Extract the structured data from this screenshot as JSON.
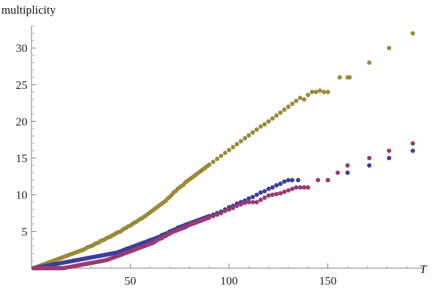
{
  "chart_data": {
    "type": "scatter",
    "title": "",
    "xlabel": "T",
    "ylabel": "multiplicity",
    "xlim": [
      0,
      198
    ],
    "ylim": [
      0,
      33
    ],
    "xticks": [
      50,
      100,
      150
    ],
    "yticks": [
      5,
      10,
      15,
      20,
      25,
      30
    ],
    "grid": false,
    "legend": "none",
    "series": [
      {
        "color": "#9a8a38",
        "x": [
          1,
          2,
          3,
          4,
          5,
          6,
          7,
          8,
          9,
          10,
          11,
          12,
          13,
          14,
          15,
          16,
          17,
          18,
          19,
          20,
          21,
          22,
          23,
          24,
          25,
          26,
          27,
          28,
          29,
          30,
          31,
          32,
          33,
          34,
          35,
          36,
          37,
          38,
          39,
          40,
          41,
          42,
          43,
          44,
          45,
          46,
          47,
          48,
          49,
          50,
          51,
          52,
          53,
          54,
          55,
          56,
          57,
          58,
          59,
          60,
          61,
          62,
          63,
          64,
          65,
          66,
          67,
          68,
          69,
          70,
          71,
          72,
          73,
          74,
          75,
          76,
          77,
          78,
          79,
          80,
          81,
          82,
          83,
          84,
          85,
          86,
          87,
          88,
          89,
          90,
          92,
          94,
          96,
          98,
          100,
          102,
          104,
          106,
          108,
          110,
          112,
          114,
          116,
          118,
          120,
          122,
          124,
          126,
          128,
          130,
          132,
          134,
          136,
          138,
          140,
          142,
          144,
          146,
          148,
          150,
          156,
          160,
          161,
          171,
          181,
          193
        ],
        "y": [
          0,
          0.1,
          0.2,
          0.3,
          0.4,
          0.5,
          0.6,
          0.7,
          0.8,
          0.9,
          1,
          1.1,
          1.2,
          1.3,
          1.4,
          1.5,
          1.6,
          1.7,
          1.8,
          1.9,
          2,
          2.1,
          2.2,
          2.3,
          2.4,
          2.5,
          2.6,
          2.8,
          2.9,
          3,
          3.1,
          3.3,
          3.4,
          3.5,
          3.7,
          3.8,
          3.9,
          4.1,
          4.2,
          4.3,
          4.5,
          4.6,
          4.8,
          4.9,
          5,
          5.2,
          5.4,
          5.5,
          5.7,
          5.8,
          6,
          6.2,
          6.3,
          6.5,
          6.7,
          6.8,
          7,
          7.2,
          7.4,
          7.6,
          7.8,
          8,
          8.2,
          8.4,
          8.6,
          8.8,
          9,
          9.2,
          9.5,
          9.7,
          10,
          10.3,
          10.5,
          10.8,
          11,
          11.2,
          11.4,
          11.7,
          11.9,
          12.1,
          12.3,
          12.5,
          12.7,
          12.9,
          13.1,
          13.3,
          13.5,
          13.7,
          13.9,
          14.1,
          14.5,
          14.9,
          15.3,
          15.7,
          16.1,
          16.5,
          16.9,
          17.3,
          17.7,
          18.1,
          18.5,
          18.9,
          19.3,
          19.6,
          20,
          20.4,
          20.8,
          21.2,
          21.6,
          22,
          22.4,
          22.8,
          23.2,
          23,
          23.6,
          24,
          24,
          24.2,
          24,
          24,
          26,
          26,
          26,
          28,
          30,
          32
        ]
      },
      {
        "color": "#3d3d9c",
        "x": [
          1,
          2,
          3,
          4,
          5,
          6,
          7,
          8,
          9,
          10,
          11,
          12,
          13,
          14,
          15,
          16,
          17,
          18,
          19,
          20,
          21,
          22,
          23,
          24,
          25,
          26,
          27,
          28,
          29,
          30,
          31,
          32,
          33,
          34,
          35,
          36,
          37,
          38,
          39,
          40,
          41,
          42,
          43,
          44,
          45,
          46,
          47,
          48,
          49,
          50,
          51,
          52,
          53,
          54,
          55,
          56,
          57,
          58,
          59,
          60,
          61,
          62,
          63,
          64,
          65,
          66,
          67,
          68,
          69,
          70,
          71,
          72,
          73,
          74,
          75,
          76,
          77,
          78,
          79,
          80,
          81,
          82,
          83,
          84,
          85,
          86,
          87,
          88,
          89,
          90,
          92,
          94,
          96,
          98,
          100,
          102,
          104,
          106,
          108,
          110,
          112,
          114,
          116,
          118,
          120,
          122,
          124,
          126,
          128,
          130,
          132,
          135,
          138,
          150,
          160,
          171,
          181,
          193
        ],
        "y": [
          0,
          0.05,
          0.1,
          0.15,
          0.2,
          0.25,
          0.3,
          0.35,
          0.4,
          0.45,
          0.5,
          0.55,
          0.6,
          0.65,
          0.7,
          0.75,
          0.8,
          0.85,
          0.9,
          0.95,
          1,
          1.05,
          1.1,
          1.15,
          1.2,
          1.25,
          1.3,
          1.35,
          1.4,
          1.45,
          1.5,
          1.55,
          1.6,
          1.65,
          1.7,
          1.75,
          1.8,
          1.85,
          1.9,
          1.95,
          2,
          2.05,
          2.1,
          2.2,
          2.3,
          2.4,
          2.5,
          2.6,
          2.7,
          2.8,
          2.9,
          3,
          3.1,
          3.2,
          3.3,
          3.4,
          3.5,
          3.6,
          3.7,
          3.8,
          3.9,
          4,
          4.1,
          4.2,
          4.3,
          4.5,
          4.6,
          4.7,
          4.8,
          5,
          5.1,
          5.2,
          5.3,
          5.5,
          5.6,
          5.7,
          5.8,
          5.9,
          6,
          6.1,
          6.2,
          6.3,
          6.4,
          6.5,
          6.6,
          6.7,
          6.8,
          6.9,
          7,
          7.1,
          7.3,
          7.5,
          7.7,
          8,
          8.3,
          8.5,
          8.8,
          9,
          9.2,
          9.5,
          9.7,
          10,
          10.3,
          10.5,
          10.8,
          11,
          11.3,
          11.5,
          11.8,
          12,
          12,
          12,
          11,
          12,
          13,
          14,
          15,
          16
        ]
      },
      {
        "color": "#9a3a72",
        "x": [
          1,
          2,
          3,
          4,
          5,
          6,
          7,
          8,
          9,
          10,
          11,
          12,
          13,
          14,
          15,
          16,
          17,
          18,
          19,
          20,
          21,
          22,
          23,
          24,
          25,
          26,
          27,
          28,
          29,
          30,
          31,
          32,
          33,
          34,
          35,
          36,
          37,
          38,
          39,
          40,
          41,
          42,
          43,
          44,
          45,
          46,
          47,
          48,
          49,
          50,
          51,
          52,
          53,
          54,
          55,
          56,
          57,
          58,
          59,
          60,
          61,
          62,
          63,
          64,
          65,
          66,
          67,
          68,
          69,
          70,
          71,
          72,
          73,
          74,
          75,
          76,
          77,
          78,
          79,
          80,
          81,
          82,
          83,
          84,
          85,
          86,
          87,
          88,
          89,
          90,
          92,
          94,
          96,
          98,
          100,
          102,
          104,
          106,
          108,
          110,
          112,
          114,
          116,
          118,
          120,
          122,
          124,
          126,
          128,
          130,
          132,
          134,
          136,
          138,
          140,
          145,
          150,
          155,
          160,
          171,
          181,
          193
        ],
        "y": [
          0,
          0,
          0,
          0,
          0,
          0,
          0,
          0,
          0,
          0,
          0,
          0,
          0,
          0,
          0,
          0,
          0.05,
          0.1,
          0.15,
          0.2,
          0.25,
          0.3,
          0.35,
          0.4,
          0.45,
          0.5,
          0.55,
          0.6,
          0.65,
          0.7,
          0.75,
          0.8,
          0.85,
          0.9,
          0.95,
          1,
          1.05,
          1.1,
          1.2,
          1.3,
          1.4,
          1.5,
          1.6,
          1.7,
          1.8,
          1.9,
          2,
          2.1,
          2.2,
          2.3,
          2.4,
          2.5,
          2.6,
          2.7,
          2.8,
          2.9,
          3,
          3.1,
          3.2,
          3.3,
          3.4,
          3.5,
          3.7,
          3.9,
          4,
          4.1,
          4.3,
          4.4,
          4.6,
          4.7,
          4.9,
          5,
          5.1,
          5.2,
          5.3,
          5.4,
          5.5,
          5.6,
          5.8,
          5.9,
          6,
          6.1,
          6.2,
          6.3,
          6.4,
          6.5,
          6.6,
          6.7,
          6.8,
          6.9,
          7.1,
          7.3,
          7.5,
          7.8,
          8,
          8.2,
          8.5,
          8.7,
          8.9,
          9,
          9,
          9,
          9.3,
          9.6,
          9.9,
          10,
          10.1,
          10.2,
          10.4,
          10.6,
          10.8,
          11,
          11,
          11,
          11,
          12,
          12,
          13,
          14,
          15,
          16,
          17
        ]
      }
    ]
  }
}
